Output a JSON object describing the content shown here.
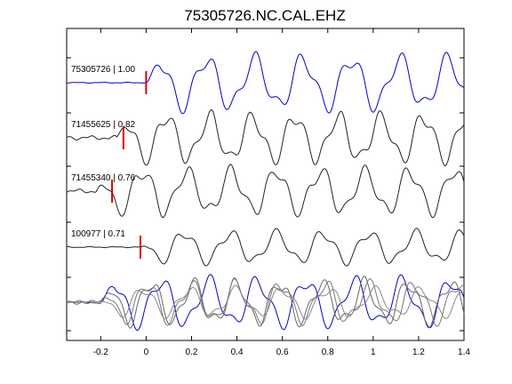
{
  "chart_data": {
    "type": "line",
    "title": "75305726.NC.CAL.EHZ",
    "xlabel": "",
    "ylabel": "",
    "xlim": [
      -0.35,
      1.4
    ],
    "x_ticks": [
      -0.2,
      0,
      0.2,
      0.4,
      0.6,
      0.8,
      1,
      1.2,
      1.4
    ],
    "x_tick_labels": [
      "-0.2",
      "0",
      "0.2",
      "0.4",
      "0.6",
      "0.8",
      "1",
      "1.2",
      "1.4"
    ],
    "grid": false,
    "legend": "none",
    "series": [
      {
        "label": "75305726 | 1.00",
        "color": "#0000cc",
        "pick_x": 0.0,
        "onset": 0.0,
        "amp": 1.0,
        "noise": 0.012,
        "phase": 0.0,
        "freq": 4.7
      },
      {
        "label": "71455625 | 0.82",
        "color": "#222222",
        "pick_x": -0.1,
        "onset": -0.13,
        "amp": 0.9,
        "noise": 0.06,
        "phase": 0.5,
        "freq": 5.3
      },
      {
        "label": "71455340 | 0.76",
        "color": "#222222",
        "pick_x": -0.15,
        "onset": -0.22,
        "amp": 0.85,
        "noise": 0.06,
        "phase": 1.3,
        "freq": 5.1
      },
      {
        "label": "100977 | 0.71",
        "color": "#222222",
        "pick_x": -0.025,
        "onset": -0.02,
        "amp": 0.6,
        "noise": 0.015,
        "phase": 2.1,
        "freq": 4.9
      }
    ],
    "pick_color": "#dd0000",
    "overlay_colors": [
      "#0000cc",
      "#666666",
      "#777777",
      "#888888"
    ]
  }
}
